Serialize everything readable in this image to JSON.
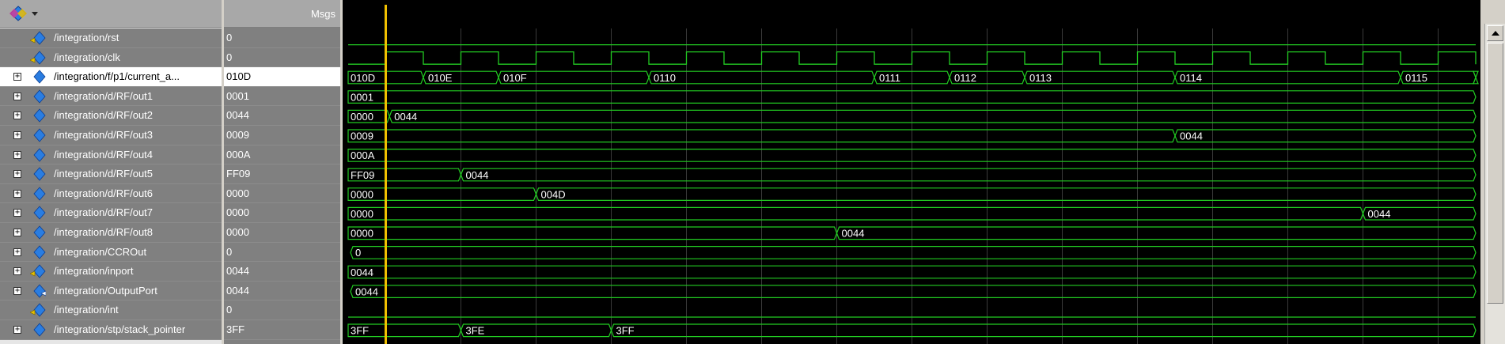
{
  "header": {
    "msgs_label": "Msgs",
    "tool_icon": "wave-tool-icon"
  },
  "signals": [
    {
      "name": "/integration/rst",
      "value": "0",
      "expandable": false,
      "icon": "input-signal-icon",
      "kind": "bit",
      "wave": "low",
      "segments": []
    },
    {
      "name": "/integration/clk",
      "value": "0",
      "expandable": false,
      "icon": "input-signal-icon",
      "kind": "bit",
      "wave": "clock",
      "segments": []
    },
    {
      "name": "/integration/f/p1/current_a...",
      "value": "010D",
      "expandable": true,
      "selected": true,
      "icon": "bus-signal-icon",
      "kind": "bus",
      "segments": [
        {
          "t": 0,
          "label": "010D"
        },
        {
          "t": 1,
          "label": "010E"
        },
        {
          "t": 2,
          "label": "010F"
        },
        {
          "t": 4,
          "label": "0110"
        },
        {
          "t": 7,
          "label": "0111"
        },
        {
          "t": 8,
          "label": "0112"
        },
        {
          "t": 9,
          "label": "0113"
        },
        {
          "t": 11,
          "label": "0114"
        },
        {
          "t": 14,
          "label": "0115"
        },
        {
          "t": 15,
          "label": ""
        }
      ]
    },
    {
      "name": "/integration/d/RF/out1",
      "value": "0001",
      "expandable": true,
      "icon": "bus-signal-icon",
      "kind": "bus",
      "segments": [
        {
          "t": 0,
          "label": "0001"
        }
      ]
    },
    {
      "name": "/integration/d/RF/out2",
      "value": "0044",
      "expandable": true,
      "icon": "bus-signal-icon",
      "kind": "bus",
      "segments": [
        {
          "t": 0,
          "label": "0000"
        },
        {
          "t": 0.55,
          "label": "0044"
        }
      ]
    },
    {
      "name": "/integration/d/RF/out3",
      "value": "0009",
      "expandable": true,
      "icon": "bus-signal-icon",
      "kind": "bus",
      "segments": [
        {
          "t": 0,
          "label": "0009"
        },
        {
          "t": 11,
          "label": "0044"
        }
      ]
    },
    {
      "name": "/integration/d/RF/out4",
      "value": "000A",
      "expandable": true,
      "icon": "bus-signal-icon",
      "kind": "bus",
      "segments": [
        {
          "t": 0,
          "label": "000A"
        }
      ]
    },
    {
      "name": "/integration/d/RF/out5",
      "value": "FF09",
      "expandable": true,
      "icon": "bus-signal-icon",
      "kind": "bus",
      "segments": [
        {
          "t": 0,
          "label": "FF09"
        },
        {
          "t": 1.5,
          "label": "0044"
        }
      ]
    },
    {
      "name": "/integration/d/RF/out6",
      "value": "0000",
      "expandable": true,
      "icon": "bus-signal-icon",
      "kind": "bus",
      "segments": [
        {
          "t": 0,
          "label": "0000"
        },
        {
          "t": 2.5,
          "label": "004D"
        }
      ]
    },
    {
      "name": "/integration/d/RF/out7",
      "value": "0000",
      "expandable": true,
      "icon": "bus-signal-icon",
      "kind": "bus",
      "segments": [
        {
          "t": 0,
          "label": "0000"
        },
        {
          "t": 13.5,
          "label": "0044"
        }
      ]
    },
    {
      "name": "/integration/d/RF/out8",
      "value": "0000",
      "expandable": true,
      "icon": "bus-signal-icon",
      "kind": "bus",
      "segments": [
        {
          "t": 0,
          "label": "0000"
        },
        {
          "t": 6.5,
          "label": "0044"
        }
      ]
    },
    {
      "name": "/integration/CCROut",
      "value": "0",
      "expandable": true,
      "icon": "bus-signal-icon",
      "kind": "bus",
      "segments": [
        {
          "t": 0,
          "label": "0",
          "open": true
        }
      ]
    },
    {
      "name": "/integration/inport",
      "value": "0044",
      "expandable": true,
      "icon": "input-signal-icon",
      "kind": "bus",
      "segments": [
        {
          "t": 0,
          "label": "0044"
        }
      ]
    },
    {
      "name": "/integration/OutputPort",
      "value": "0044",
      "expandable": true,
      "icon": "output-signal-icon",
      "kind": "bus",
      "segments": [
        {
          "t": 0,
          "label": "0044",
          "open": true
        }
      ]
    },
    {
      "name": "/integration/int",
      "value": "0",
      "expandable": false,
      "icon": "input-signal-icon",
      "kind": "bit",
      "wave": "low",
      "segments": []
    },
    {
      "name": "/integration/stp/stack_pointer",
      "value": "3FF",
      "expandable": true,
      "icon": "bus-signal-icon",
      "kind": "bus",
      "segments": [
        {
          "t": 0,
          "label": "3FF"
        },
        {
          "t": 1.5,
          "label": "3FE"
        },
        {
          "t": 3.5,
          "label": "3FF"
        }
      ]
    }
  ],
  "timeline": {
    "clock_periods": 15,
    "cursor_t": 0.5
  },
  "colors": {
    "wave": "#22cc22",
    "cursor": "#f0c000",
    "grid": "#3a3a3a",
    "label": "#ffffff"
  }
}
